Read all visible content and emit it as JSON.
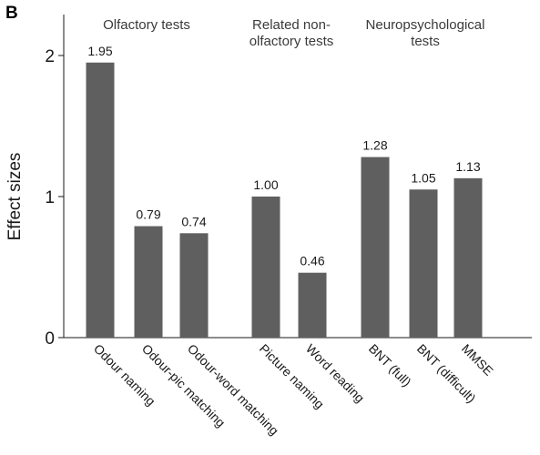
{
  "panel_letter": "B",
  "chart_data": {
    "type": "bar",
    "title": "",
    "xlabel": "",
    "ylabel": "Effect sizes",
    "ylim": [
      0,
      2.0
    ],
    "yticks": [
      0,
      1,
      2
    ],
    "bar_color": "#5f5f5f",
    "groups": [
      {
        "label_lines": [
          "Olfactory tests"
        ],
        "categories": [
          "Odour naming",
          "Odour-pic matching",
          "Odour-word matching"
        ]
      },
      {
        "label_lines": [
          "Related non-",
          "olfactory tests"
        ],
        "categories": [
          "Picture naming",
          "Word reading"
        ]
      },
      {
        "label_lines": [
          "Neuropsychological",
          "tests"
        ],
        "categories": [
          "BNT (full)",
          "BNT (difficult)",
          "MMSE"
        ]
      }
    ],
    "categories": [
      "Odour naming",
      "Odour-pic matching",
      "Odour-word matching",
      "Picture naming",
      "Word reading",
      "BNT (full)",
      "BNT (difficult)",
      "MMSE"
    ],
    "values": [
      1.95,
      0.79,
      0.74,
      1.0,
      0.46,
      1.28,
      1.05,
      1.13
    ],
    "value_labels": [
      "1.95",
      "0.79",
      "0.74",
      "1.00",
      "0.46",
      "1.28",
      "1.05",
      "1.13"
    ]
  }
}
